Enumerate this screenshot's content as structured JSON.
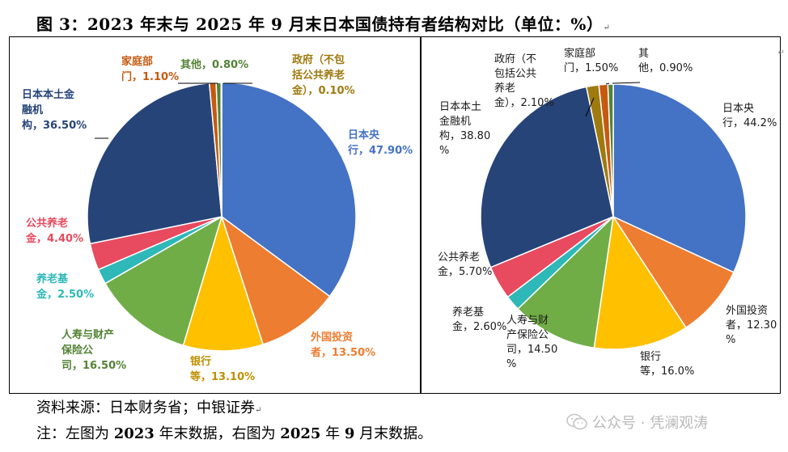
{
  "title": "图 3：2023 年末与 2025 年 9 月末日本国债持有者结构对比（单位：%）",
  "title_mark": "↵",
  "chart_data": [
    {
      "type": "pie",
      "title": "",
      "slices": [
        {
          "label": "日本央行",
          "value": 47.9,
          "text": "日本央\n行，47.90%",
          "color": "#4472C4"
        },
        {
          "label": "外国投资者",
          "value": 13.5,
          "text": "外国投资\n者，13.50%",
          "color": "#ED7D31"
        },
        {
          "label": "银行",
          "value": 13.1,
          "text": "银行\n等，13.10%",
          "color": "#FFC000"
        },
        {
          "label": "人寿与财产保险公司",
          "value": 16.5,
          "text": "人寿与财产\n保险公\n司，16.50%",
          "color": "#70AD47"
        },
        {
          "label": "养老基金",
          "value": 2.5,
          "text": "养老基\n金，2.50%",
          "color": "#2EB8B8"
        },
        {
          "label": "公共养老金",
          "value": 4.4,
          "text": "公共养老\n金，4.40%",
          "color": "#E84A5F"
        },
        {
          "label": "日本本土金融机构",
          "value": 36.5,
          "text": "日本本土金\n融机\n构，36.50%",
          "color": "#264478"
        },
        {
          "label": "家庭部门",
          "value": 1.1,
          "text": "家庭部\n门，1.10%",
          "color": "#C55A11"
        },
        {
          "label": "其他",
          "value": 0.8,
          "text": "其他，0.80%",
          "color": "#548235"
        },
        {
          "label": "政府（不包括公共养老金）",
          "value": 0.1,
          "text": "政府（不包\n括公共养老\n金），0.10%",
          "color": "#9E7A0F"
        }
      ]
    },
    {
      "type": "pie",
      "title": "",
      "slices": [
        {
          "label": "日本央行",
          "value": 44.2,
          "text": "日本央\n行，44.2%",
          "color": "#4472C4"
        },
        {
          "label": "外国投资者",
          "value": 12.3,
          "text": "外国投资\n者，12.30\n%",
          "color": "#ED7D31"
        },
        {
          "label": "银行",
          "value": 16.0,
          "text": "银行\n等，16.0%",
          "color": "#FFC000"
        },
        {
          "label": "人寿与财产保险公司",
          "value": 14.5,
          "text": "人寿与财\n产保险公\n司，14.50\n%",
          "color": "#70AD47"
        },
        {
          "label": "养老基金",
          "value": 2.6,
          "text": "养老基\n金，2.60%",
          "color": "#2EB8B8"
        },
        {
          "label": "公共养老金",
          "value": 5.7,
          "text": "公共养老\n金，5.70%",
          "color": "#E84A5F"
        },
        {
          "label": "日本本土金融机构",
          "value": 38.8,
          "text": "日本本土\n金融机\n构，38.80\n%",
          "color": "#264478"
        },
        {
          "label": "政府（不包括公共养老金）",
          "value": 2.1,
          "text": "政府（不\n包括公共\n养老\n金），2.10%",
          "color": "#9E7A0F"
        },
        {
          "label": "家庭部门",
          "value": 1.5,
          "text": "家庭部\n门，1.50%",
          "color": "#C55A11"
        },
        {
          "label": "其他",
          "value": 0.9,
          "text": "其\n他，0.90%",
          "color": "#548235"
        }
      ]
    }
  ],
  "footer": {
    "source": "资料来源：日本财务省；中银证券",
    "source_mark": "↵",
    "note_prefix": "注：左图为 ",
    "note_b1": "2023",
    "note_mid1": " 年末数据，右图为 ",
    "note_b2": "2025",
    "note_mid2": " 年 ",
    "note_b3": "9",
    "note_suffix": " 月末数据。"
  },
  "watermark": {
    "text": "公众号 · 凭澜观涛",
    "icon": "wechat-icon"
  },
  "edge_mark": "↵"
}
